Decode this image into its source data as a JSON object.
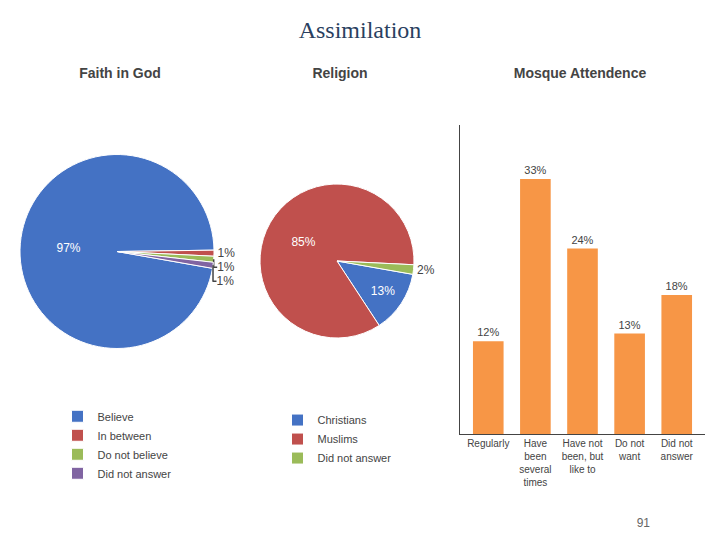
{
  "title": "Assimilation",
  "annotations": [
    "91"
  ],
  "chart_data": [
    {
      "type": "pie",
      "title": "Faith in God",
      "categories": [
        "Believe",
        "In between",
        "Do not believe",
        "Did not answer"
      ],
      "values": [
        97,
        1,
        1,
        1
      ],
      "value_labels": [
        "97%",
        "1%",
        "1%",
        "1%"
      ],
      "colors": [
        "#4472C4",
        "#C0504D",
        "#9BBB59",
        "#8064A2"
      ],
      "data_labels": true,
      "legend": "bottom"
    },
    {
      "type": "pie",
      "title": "Religion",
      "categories": [
        "Christians",
        "Muslims",
        "Did not answer"
      ],
      "values": [
        13,
        85,
        2
      ],
      "value_labels": [
        "13%",
        "85%",
        "2%"
      ],
      "colors": [
        "#4472C4",
        "#C0504D",
        "#9BBB59"
      ],
      "data_labels": true,
      "legend": "bottom"
    },
    {
      "type": "bar",
      "title": "Mosque Attendence",
      "categories": [
        "Regularly",
        "Have\nbeen\nseveral\ntimes",
        "Have not\nbeen, but\nlike to",
        "Do not\nwant",
        "Did not\nanswer"
      ],
      "values": [
        12,
        33,
        24,
        13,
        18
      ],
      "value_labels": [
        "12%",
        "33%",
        "24%",
        "13%",
        "18%"
      ],
      "color": "#F79646",
      "ylim": [
        0,
        40
      ],
      "tick_labels": "x",
      "grid": false,
      "data_labels": true
    }
  ]
}
